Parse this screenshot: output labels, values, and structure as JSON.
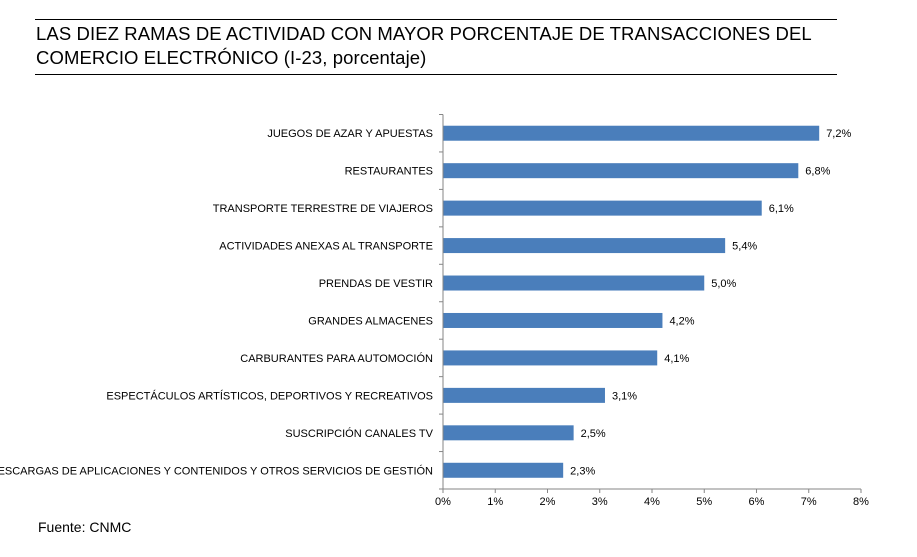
{
  "title": "LAS DIEZ RAMAS DE ACTIVIDAD CON MAYOR PORCENTAJE DE TRANSACCIONES DEL COMERCIO ELECTRÓNICO (I-23, porcentaje)",
  "source": "Fuente: CNMC",
  "colors": {
    "bar": "#4a7ebb"
  },
  "chart_data": {
    "type": "bar",
    "orientation": "horizontal",
    "categories": [
      "JUEGOS DE AZAR Y APUESTAS",
      "RESTAURANTES",
      "TRANSPORTE TERRESTRE DE VIAJEROS",
      "ACTIVIDADES ANEXAS AL TRANSPORTE",
      "PRENDAS DE VESTIR",
      "GRANDES ALMACENES",
      "CARBURANTES PARA AUTOMOCIÓN",
      "ESPECTÁCULOS ARTÍSTICOS, DEPORTIVOS Y RECREATIVOS",
      "SUSCRIPCIÓN CANALES TV",
      "DESCARGAS DE APLICACIONES Y CONTENIDOS Y OTROS SERVICIOS DE GESTIÓN"
    ],
    "values": [
      7.2,
      6.8,
      6.1,
      5.4,
      5.0,
      4.2,
      4.1,
      3.1,
      2.5,
      2.3
    ],
    "data_labels": [
      "7,2%",
      "6,8%",
      "6,1%",
      "5,4%",
      "5,0%",
      "4,2%",
      "4,1%",
      "3,1%",
      "2,5%",
      "2,3%"
    ],
    "xlim": [
      0,
      8
    ],
    "xticks": [
      0,
      1,
      2,
      3,
      4,
      5,
      6,
      7,
      8
    ],
    "xtick_labels": [
      "0%",
      "1%",
      "2%",
      "3%",
      "4%",
      "5%",
      "6%",
      "7%",
      "8%"
    ],
    "grid": false,
    "legend": "none"
  }
}
